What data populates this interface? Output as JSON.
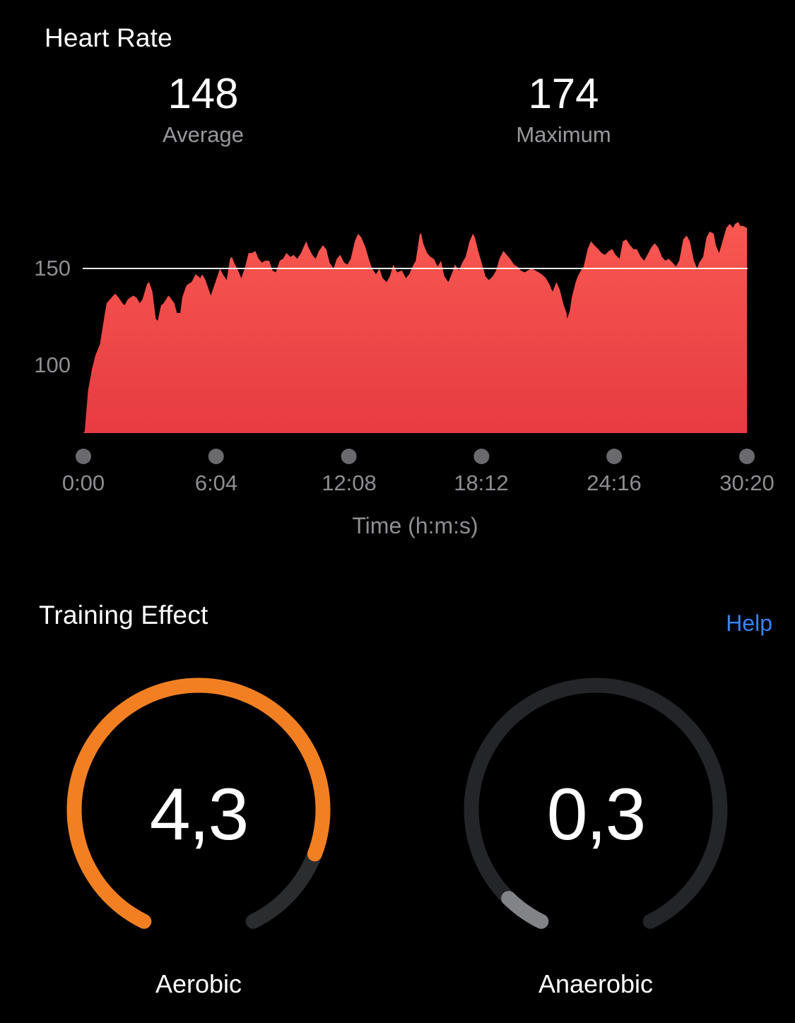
{
  "colors": {
    "help_blue": "#3a82f7",
    "background": "#000000"
  },
  "heart_rate": {
    "title": "Heart Rate",
    "stats": [
      {
        "value": "148",
        "label": "Average"
      },
      {
        "value": "174",
        "label": "Maximum"
      }
    ]
  },
  "chart_data": {
    "type": "area",
    "title": "Heart Rate",
    "xlabel": "Time (h:m:s)",
    "ylabel": "",
    "x_ticks": [
      "0:00",
      "6:04",
      "12:08",
      "18:12",
      "24:16",
      "30:20"
    ],
    "x_range_seconds": [
      0,
      1820
    ],
    "y_ticks": [
      150,
      100
    ],
    "ylim": [
      65,
      180
    ],
    "reference_line_bpm": 150,
    "baseline_bpm": 65,
    "legend": "none",
    "grid": "single horizontal reference line at 150 bpm",
    "colors": {
      "fill_top": "#f95851",
      "fill_bottom": "#e63b42",
      "ref_line": "#ffffff",
      "tick_dot": "#69696e"
    },
    "series": [
      {
        "name": "heart_rate_bpm",
        "points": [
          [
            0.0,
            65
          ],
          [
            0.002,
            66
          ],
          [
            0.007,
            87
          ],
          [
            0.013,
            98
          ],
          [
            0.018,
            105
          ],
          [
            0.025,
            111
          ],
          [
            0.032,
            126
          ],
          [
            0.035,
            132
          ],
          [
            0.045,
            136
          ],
          [
            0.048,
            137
          ],
          [
            0.053,
            135
          ],
          [
            0.059,
            132
          ],
          [
            0.062,
            131
          ],
          [
            0.067,
            134
          ],
          [
            0.075,
            136
          ],
          [
            0.08,
            135
          ],
          [
            0.085,
            132
          ],
          [
            0.089,
            134
          ],
          [
            0.096,
            142
          ],
          [
            0.099,
            143
          ],
          [
            0.104,
            138
          ],
          [
            0.109,
            124
          ],
          [
            0.112,
            123
          ],
          [
            0.117,
            131
          ],
          [
            0.121,
            132
          ],
          [
            0.128,
            136
          ],
          [
            0.131,
            135
          ],
          [
            0.137,
            132
          ],
          [
            0.141,
            127
          ],
          [
            0.146,
            127
          ],
          [
            0.149,
            135
          ],
          [
            0.155,
            141
          ],
          [
            0.158,
            142
          ],
          [
            0.163,
            143
          ],
          [
            0.169,
            147
          ],
          [
            0.173,
            146
          ],
          [
            0.176,
            145
          ],
          [
            0.179,
            147
          ],
          [
            0.184,
            144
          ],
          [
            0.189,
            139
          ],
          [
            0.192,
            136
          ],
          [
            0.197,
            141
          ],
          [
            0.203,
            147
          ],
          [
            0.206,
            150
          ],
          [
            0.21,
            147
          ],
          [
            0.216,
            144
          ],
          [
            0.221,
            155
          ],
          [
            0.224,
            156
          ],
          [
            0.227,
            153
          ],
          [
            0.233,
            149
          ],
          [
            0.238,
            145
          ],
          [
            0.243,
            150
          ],
          [
            0.249,
            158
          ],
          [
            0.254,
            158
          ],
          [
            0.259,
            159
          ],
          [
            0.264,
            155
          ],
          [
            0.269,
            153
          ],
          [
            0.274,
            154
          ],
          [
            0.28,
            154
          ],
          [
            0.285,
            149
          ],
          [
            0.29,
            148
          ],
          [
            0.296,
            154
          ],
          [
            0.301,
            155
          ],
          [
            0.306,
            158
          ],
          [
            0.312,
            156
          ],
          [
            0.317,
            157
          ],
          [
            0.322,
            155
          ],
          [
            0.328,
            158
          ],
          [
            0.333,
            162
          ],
          [
            0.336,
            164
          ],
          [
            0.339,
            161
          ],
          [
            0.345,
            157
          ],
          [
            0.35,
            155
          ],
          [
            0.355,
            159
          ],
          [
            0.361,
            162
          ],
          [
            0.366,
            160
          ],
          [
            0.371,
            153
          ],
          [
            0.377,
            150
          ],
          [
            0.382,
            155
          ],
          [
            0.387,
            157
          ],
          [
            0.393,
            153
          ],
          [
            0.398,
            152
          ],
          [
            0.403,
            155
          ],
          [
            0.409,
            164
          ],
          [
            0.414,
            168
          ],
          [
            0.419,
            166
          ],
          [
            0.425,
            161
          ],
          [
            0.43,
            155
          ],
          [
            0.435,
            150
          ],
          [
            0.441,
            147
          ],
          [
            0.446,
            150
          ],
          [
            0.451,
            145
          ],
          [
            0.457,
            143
          ],
          [
            0.462,
            146
          ],
          [
            0.467,
            152
          ],
          [
            0.473,
            148
          ],
          [
            0.48,
            149
          ],
          [
            0.486,
            145
          ],
          [
            0.491,
            147
          ],
          [
            0.496,
            151
          ],
          [
            0.501,
            154
          ],
          [
            0.507,
            168
          ],
          [
            0.509,
            168
          ],
          [
            0.512,
            163
          ],
          [
            0.518,
            158
          ],
          [
            0.523,
            156
          ],
          [
            0.528,
            155
          ],
          [
            0.534,
            151
          ],
          [
            0.539,
            154
          ],
          [
            0.544,
            146
          ],
          [
            0.55,
            143
          ],
          [
            0.555,
            147
          ],
          [
            0.56,
            152
          ],
          [
            0.566,
            149
          ],
          [
            0.571,
            153
          ],
          [
            0.576,
            156
          ],
          [
            0.582,
            164
          ],
          [
            0.587,
            168
          ],
          [
            0.59,
            166
          ],
          [
            0.595,
            159
          ],
          [
            0.601,
            152
          ],
          [
            0.606,
            146
          ],
          [
            0.611,
            144
          ],
          [
            0.617,
            146
          ],
          [
            0.622,
            149
          ],
          [
            0.627,
            155
          ],
          [
            0.633,
            159
          ],
          [
            0.638,
            157
          ],
          [
            0.643,
            155
          ],
          [
            0.649,
            152
          ],
          [
            0.654,
            151
          ],
          [
            0.659,
            149
          ],
          [
            0.665,
            148
          ],
          [
            0.67,
            149
          ],
          [
            0.675,
            150
          ],
          [
            0.681,
            149
          ],
          [
            0.686,
            148
          ],
          [
            0.691,
            147
          ],
          [
            0.697,
            145
          ],
          [
            0.702,
            142
          ],
          [
            0.707,
            138
          ],
          [
            0.713,
            143
          ],
          [
            0.718,
            139
          ],
          [
            0.723,
            132
          ],
          [
            0.728,
            127
          ],
          [
            0.729,
            124
          ],
          [
            0.733,
            128
          ],
          [
            0.736,
            135
          ],
          [
            0.742,
            143
          ],
          [
            0.745,
            146
          ],
          [
            0.75,
            149
          ],
          [
            0.754,
            151
          ],
          [
            0.76,
            160
          ],
          [
            0.765,
            164
          ],
          [
            0.77,
            162
          ],
          [
            0.776,
            160
          ],
          [
            0.781,
            158
          ],
          [
            0.786,
            157
          ],
          [
            0.792,
            159
          ],
          [
            0.797,
            160
          ],
          [
            0.802,
            157
          ],
          [
            0.808,
            155
          ],
          [
            0.813,
            164
          ],
          [
            0.818,
            165
          ],
          [
            0.824,
            162
          ],
          [
            0.829,
            160
          ],
          [
            0.834,
            160
          ],
          [
            0.84,
            156
          ],
          [
            0.845,
            154
          ],
          [
            0.85,
            157
          ],
          [
            0.856,
            161
          ],
          [
            0.861,
            163
          ],
          [
            0.866,
            161
          ],
          [
            0.872,
            156
          ],
          [
            0.877,
            154
          ],
          [
            0.882,
            155
          ],
          [
            0.888,
            153
          ],
          [
            0.893,
            151
          ],
          [
            0.898,
            154
          ],
          [
            0.904,
            165
          ],
          [
            0.909,
            167
          ],
          [
            0.914,
            164
          ],
          [
            0.92,
            154
          ],
          [
            0.925,
            150
          ],
          [
            0.928,
            153
          ],
          [
            0.934,
            156
          ],
          [
            0.939,
            166
          ],
          [
            0.944,
            169
          ],
          [
            0.95,
            168
          ],
          [
            0.953,
            162
          ],
          [
            0.958,
            158
          ],
          [
            0.964,
            165
          ],
          [
            0.969,
            171
          ],
          [
            0.974,
            173
          ],
          [
            0.979,
            171
          ],
          [
            0.982,
            173
          ],
          [
            0.987,
            174
          ],
          [
            0.99,
            172
          ],
          [
            0.994,
            172
          ],
          [
            1.0,
            171
          ]
        ]
      }
    ]
  },
  "training_effect": {
    "title": "Training Effect",
    "help_label": "Help",
    "gauges": [
      {
        "id": "aerobic",
        "label": "Aerobic",
        "value": 4.3,
        "max": 5,
        "value_label": "4,3",
        "fill_color": "#f28022",
        "track_color": "#2b2c2e"
      },
      {
        "id": "anaerobic",
        "label": "Anaerobic",
        "value": 0.3,
        "max": 5,
        "value_label": "0,3",
        "fill_color": "#818387",
        "track_color": "#242528"
      }
    ]
  }
}
